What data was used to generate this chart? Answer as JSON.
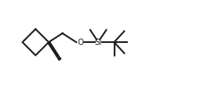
{
  "bg_color": "#ffffff",
  "line_color": "#1a1a1a",
  "line_width": 1.3,
  "figsize": [
    2.38,
    1.06
  ],
  "dpi": 100,
  "si_label": "Si",
  "o_label": "O",
  "si_fontsize": 6.5,
  "o_fontsize": 6.5,
  "xlim": [
    0.0,
    10.0
  ],
  "ylim": [
    0.5,
    4.5
  ]
}
